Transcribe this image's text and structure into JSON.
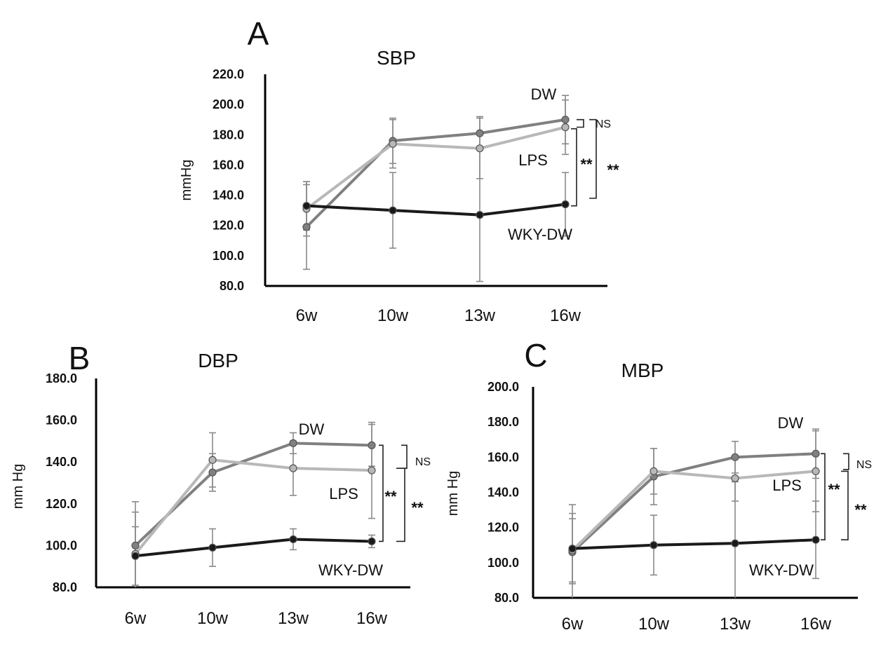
{
  "chart_data": [
    {
      "type": "line",
      "panel": "A",
      "title": "SBP",
      "ylabel": "mmHg",
      "xlabel": "",
      "categories": [
        "6w",
        "10w",
        "13w",
        "16w"
      ],
      "ylim": [
        80,
        220
      ],
      "yticks": [
        "80.0",
        "100.0",
        "120.0",
        "140.0",
        "160.0",
        "180.0",
        "200.0",
        "220.0"
      ],
      "series": [
        {
          "name": "DW",
          "color": "#808080",
          "values": [
            119,
            176,
            181,
            190
          ],
          "err": [
            28,
            15,
            11,
            16
          ]
        },
        {
          "name": "LPS",
          "color": "#b8b8b8",
          "values": [
            131,
            174,
            171,
            185
          ],
          "err": [
            18,
            16,
            20,
            18
          ]
        },
        {
          "name": "WKY-DW",
          "color": "#1a1a1a",
          "values": [
            133,
            130,
            127,
            134
          ],
          "err": [
            16,
            25,
            44,
            21
          ]
        }
      ],
      "annotations": {
        "ns": "NS",
        "sig1": "**",
        "sig2": "**"
      }
    },
    {
      "type": "line",
      "panel": "B",
      "title": "DBP",
      "ylabel": "mm Hg",
      "xlabel": "",
      "categories": [
        "6w",
        "10w",
        "13w",
        "16w"
      ],
      "ylim": [
        80,
        180
      ],
      "yticks": [
        "80.0",
        "100.0",
        "120.0",
        "140.0",
        "160.0",
        "180.0"
      ],
      "series": [
        {
          "name": "DW",
          "color": "#808080",
          "values": [
            100,
            135,
            149,
            148
          ],
          "err": [
            21,
            9,
            5,
            10
          ]
        },
        {
          "name": "LPS",
          "color": "#b8b8b8",
          "values": [
            96,
            141,
            137,
            136
          ],
          "err": [
            20,
            13,
            13,
            23
          ]
        },
        {
          "name": "WKY-DW",
          "color": "#1a1a1a",
          "values": [
            95,
            99,
            103,
            102
          ],
          "err": [
            14,
            9,
            5,
            3
          ]
        }
      ],
      "annotations": {
        "ns": "NS",
        "sig1": "**",
        "sig2": "**"
      }
    },
    {
      "type": "line",
      "panel": "C",
      "title": "MBP",
      "ylabel": "mm Hg",
      "xlabel": "",
      "categories": [
        "6w",
        "10w",
        "13w",
        "16w"
      ],
      "ylim": [
        80,
        200
      ],
      "yticks": [
        "80.0",
        "100.0",
        "120.0",
        "140.0",
        "160.0",
        "180.0",
        "200.0"
      ],
      "series": [
        {
          "name": "DW",
          "color": "#808080",
          "values": [
            106,
            149,
            160,
            162
          ],
          "err": [
            27,
            16,
            9,
            14
          ]
        },
        {
          "name": "LPS",
          "color": "#b8b8b8",
          "values": [
            107,
            152,
            148,
            152
          ],
          "err": [
            18,
            13,
            13,
            23
          ]
        },
        {
          "name": "WKY-DW",
          "color": "#1a1a1a",
          "values": [
            108,
            110,
            111,
            113
          ],
          "err": [
            20,
            17,
            35,
            22
          ]
        }
      ],
      "annotations": {
        "ns": "NS",
        "sig1": "**",
        "sig2": "**"
      }
    }
  ]
}
